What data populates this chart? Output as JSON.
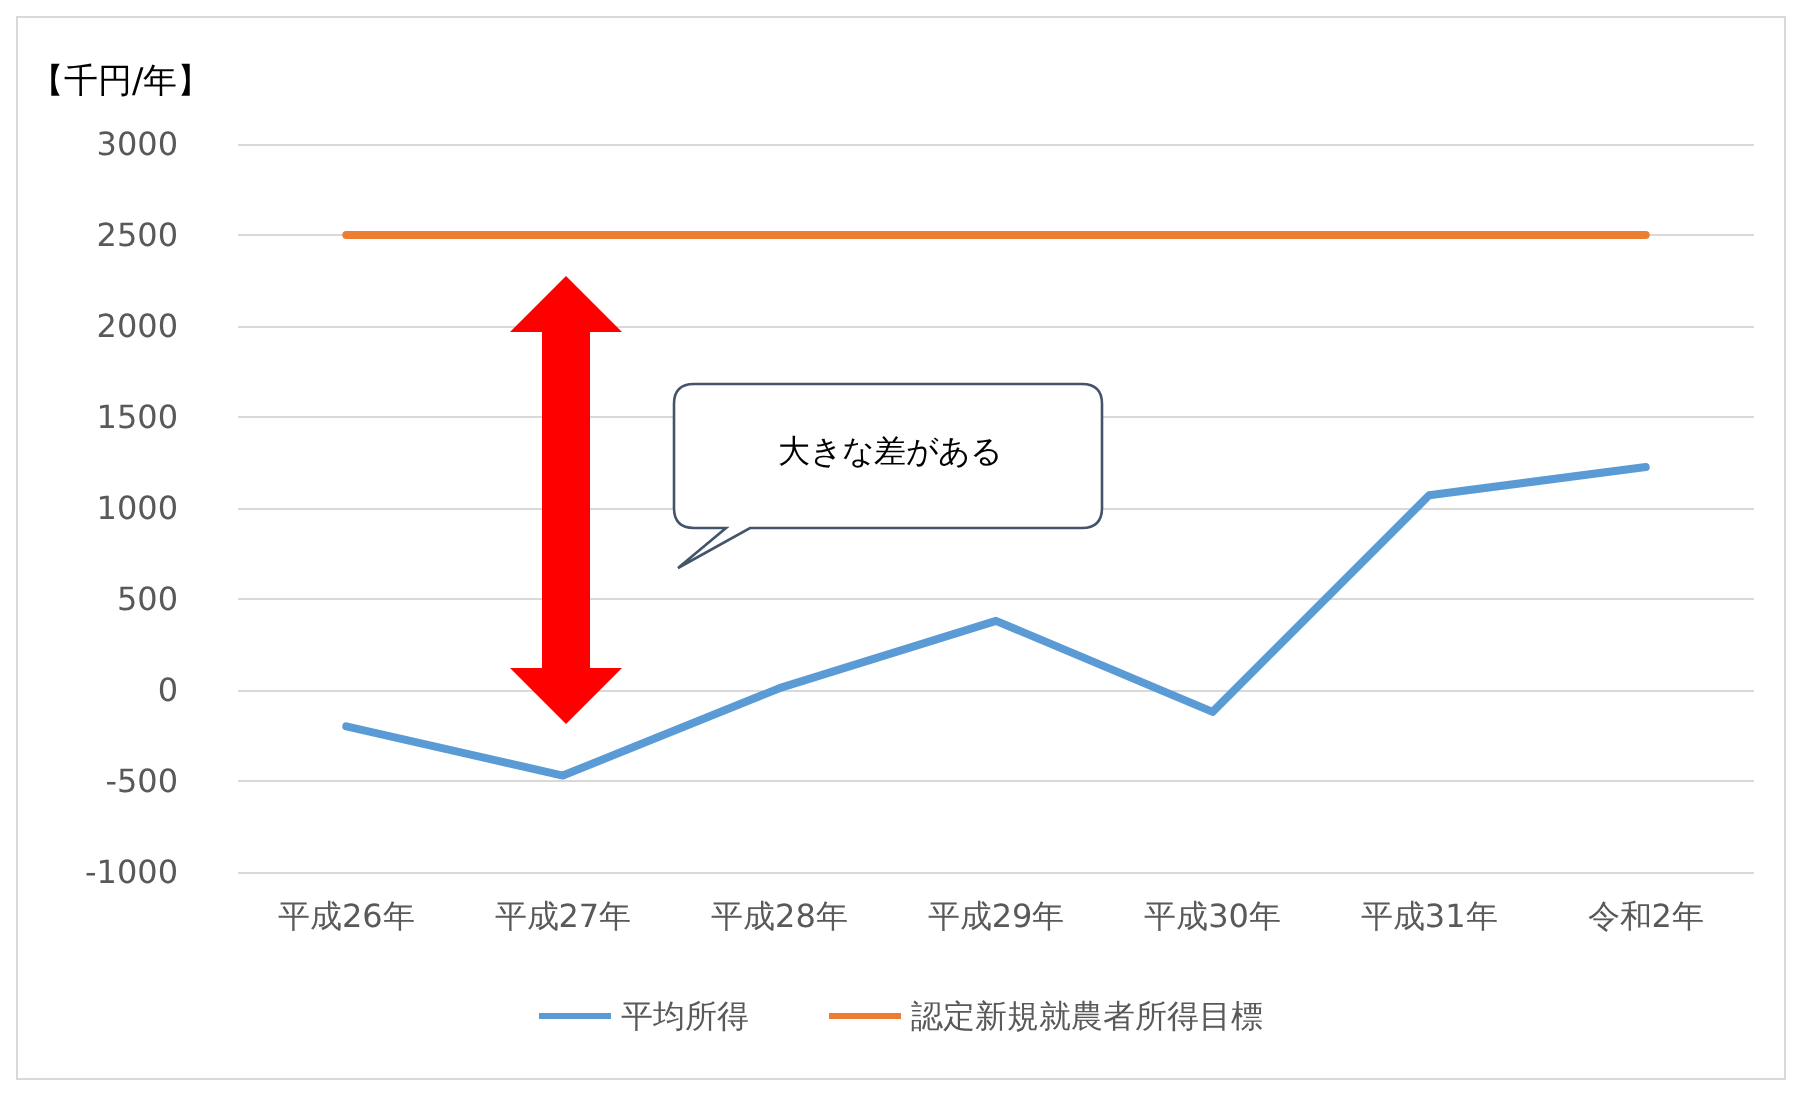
{
  "chart_data": {
    "type": "line",
    "ylabel": "【千円/年】",
    "categories": [
      "平成26年",
      "平成27年",
      "平成28年",
      "平成29年",
      "平成30年",
      "平成31年",
      "令和2年"
    ],
    "series": [
      {
        "name": "平均所得",
        "color": "#5b9bd5",
        "values": [
          -200,
          -470,
          10,
          380,
          -120,
          1070,
          1225
        ]
      },
      {
        "name": "認定新規就農者所得目標",
        "color": "#ed7d31",
        "values": [
          2500,
          2500,
          2500,
          2500,
          2500,
          2500,
          2500
        ]
      }
    ],
    "ylim": [
      -1000,
      3000
    ],
    "yticks": [
      -1000,
      -500,
      0,
      500,
      1000,
      1500,
      2000,
      2500,
      3000
    ],
    "grid": "y",
    "legend": "bottom",
    "marker": "none",
    "line_style": "solid",
    "annotations": [
      "大きな差がある"
    ]
  }
}
